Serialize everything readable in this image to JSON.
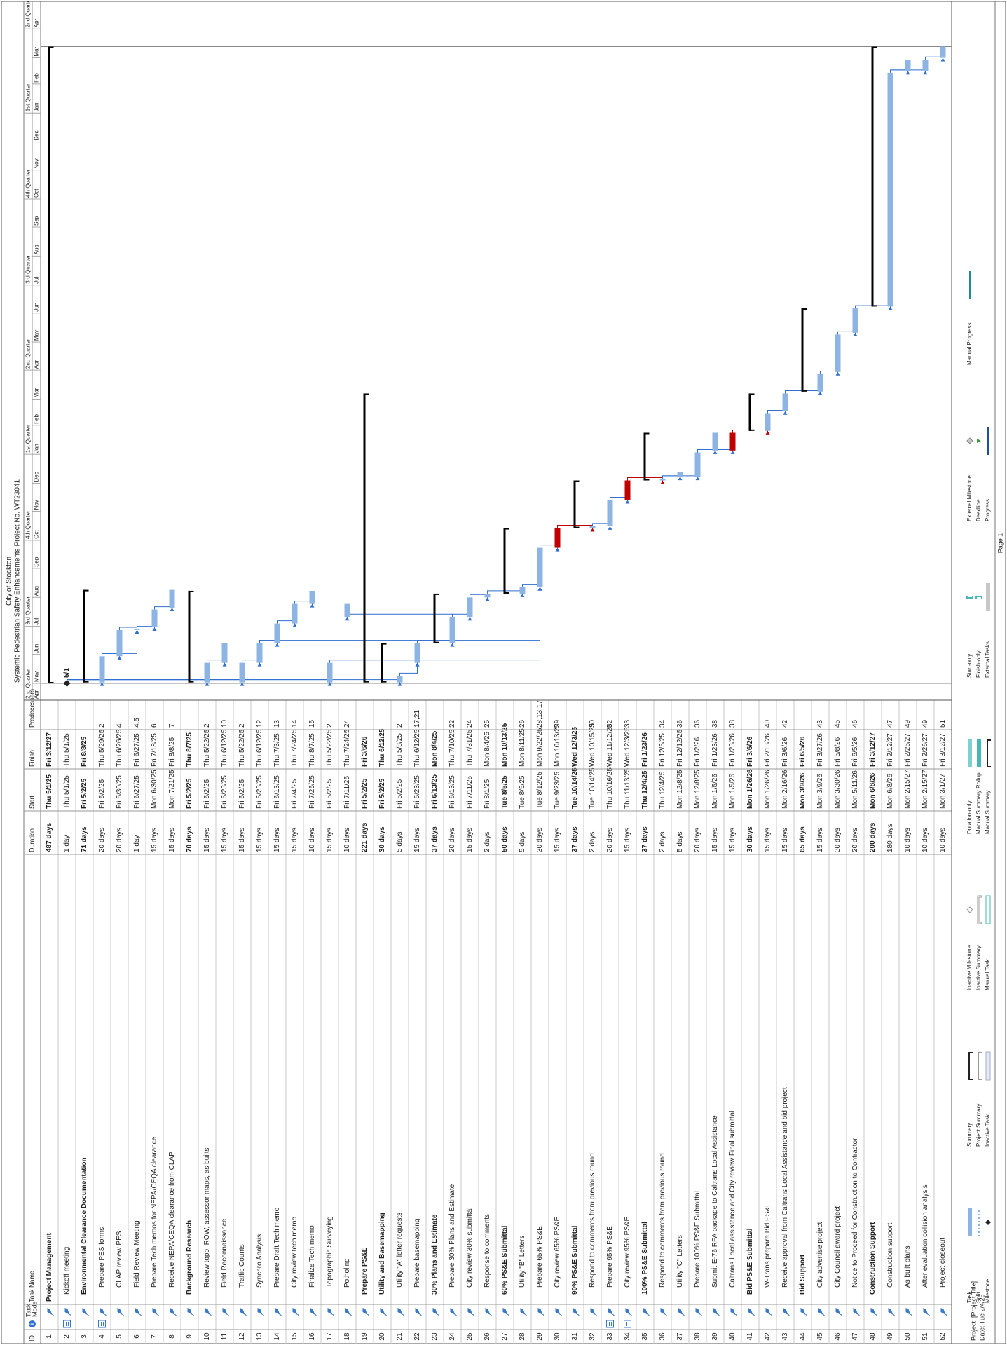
{
  "header": {
    "title": "City of Stockton",
    "subtitle": "Systemic Pedestrian Safety Enhancements Project No. WT23041"
  },
  "table": {
    "columns": [
      "ID",
      "Task Mode",
      "Task Name",
      "Duration",
      "Start",
      "Finish",
      "Predecessors"
    ],
    "rows": [
      {
        "id": 1,
        "name": "Project Management",
        "duration": "487 days",
        "start": "Thu 5/1/25",
        "finish": "Fri 3/12/27",
        "summary": true,
        "level": 0
      },
      {
        "id": 2,
        "name": "Kickoff meeting",
        "duration": "1 day",
        "start": "Thu 5/1/25",
        "finish": "Thu 5/1/25",
        "level": 1,
        "indicator": true,
        "milestone_label": "5/1"
      },
      {
        "id": 3,
        "name": "Environmental Clearance Documentation",
        "duration": "71 days",
        "start": "Fri 5/2/25",
        "finish": "Fri 8/8/25",
        "summary": true,
        "level": 1
      },
      {
        "id": 4,
        "name": "Prepare PES forms",
        "duration": "20 days",
        "start": "Fri 5/2/25",
        "finish": "Thu 5/29/25",
        "predecessors": "2",
        "level": 2,
        "indicator": true
      },
      {
        "id": 5,
        "name": "CLAP review PES",
        "duration": "20 days",
        "start": "Fri 5/30/25",
        "finish": "Thu 6/26/25",
        "predecessors": "4",
        "level": 2
      },
      {
        "id": 6,
        "name": "Field Review Meeting",
        "duration": "1 day",
        "start": "Fri 6/27/25",
        "finish": "Fri 6/27/25",
        "predecessors": "4,5",
        "level": 2
      },
      {
        "id": 7,
        "name": "Prepare Tech memos for NEPA/CEQA clearance",
        "duration": "15 days",
        "start": "Mon 6/30/25",
        "finish": "Fri 7/18/25",
        "predecessors": "6",
        "level": 2
      },
      {
        "id": 8,
        "name": "Receive NEPA/CEQA clearance from CLAP",
        "duration": "15 days",
        "start": "Mon 7/21/25",
        "finish": "Fri 8/8/25",
        "predecessors": "7",
        "level": 2
      },
      {
        "id": 9,
        "name": "Background Research",
        "duration": "70 days",
        "start": "Fri 5/2/25",
        "finish": "Thu 8/7/25",
        "summary": true,
        "level": 1
      },
      {
        "id": 10,
        "name": "Review topo, ROW, assessor maps, as builts",
        "duration": "15 days",
        "start": "Fri 5/2/25",
        "finish": "Thu 5/22/25",
        "predecessors": "2",
        "level": 2
      },
      {
        "id": 11,
        "name": "Field Reconnaissance",
        "duration": "15 days",
        "start": "Fri 5/23/25",
        "finish": "Thu 6/12/25",
        "predecessors": "10",
        "level": 2
      },
      {
        "id": 12,
        "name": "Traffic Counts",
        "duration": "15 days",
        "start": "Fri 5/2/25",
        "finish": "Thu 5/22/25",
        "predecessors": "2",
        "level": 2
      },
      {
        "id": 13,
        "name": "Synchro Analysis",
        "duration": "15 days",
        "start": "Fri 5/23/25",
        "finish": "Thu 6/12/25",
        "predecessors": "12",
        "level": 2
      },
      {
        "id": 14,
        "name": "Prepare Draft Tech memo",
        "duration": "15 days",
        "start": "Fri 6/13/25",
        "finish": "Thu 7/3/25",
        "predecessors": "13",
        "level": 2
      },
      {
        "id": 15,
        "name": "City review tech memo",
        "duration": "15 days",
        "start": "Fri 7/4/25",
        "finish": "Thu 7/24/25",
        "predecessors": "14",
        "level": 2
      },
      {
        "id": 16,
        "name": "Finalize Tech memo",
        "duration": "10 days",
        "start": "Fri 7/25/25",
        "finish": "Thu 8/7/25",
        "predecessors": "15",
        "level": 2
      },
      {
        "id": 17,
        "name": "Topographic Surveying",
        "duration": "15 days",
        "start": "Fri 5/2/25",
        "finish": "Thu 5/22/25",
        "predecessors": "2",
        "level": 2
      },
      {
        "id": 18,
        "name": "Potholing",
        "duration": "10 days",
        "start": "Fri 7/11/25",
        "finish": "Thu 7/24/25",
        "predecessors": "24",
        "level": 2
      },
      {
        "id": 19,
        "name": "Prepare PS&E",
        "duration": "221 days",
        "start": "Fri 5/2/25",
        "finish": "Fri 3/6/26",
        "summary": true,
        "level": 1
      },
      {
        "id": 20,
        "name": "Utility and Basemapping",
        "duration": "30 days",
        "start": "Fri 5/2/25",
        "finish": "Thu 6/12/25",
        "summary": true,
        "level": 1
      },
      {
        "id": 21,
        "name": "Utility \"A\" letter requests",
        "duration": "5 days",
        "start": "Fri 5/2/25",
        "finish": "Thu 5/8/25",
        "predecessors": "2",
        "level": 2
      },
      {
        "id": 22,
        "name": "Prepare basemapping",
        "duration": "15 days",
        "start": "Fri 5/23/25",
        "finish": "Thu 6/12/25",
        "predecessors": "17,21",
        "level": 2
      },
      {
        "id": 23,
        "name": "30% Plans and Estimate",
        "duration": "37 days",
        "start": "Fri 6/13/25",
        "finish": "Mon 8/4/25",
        "summary": true,
        "level": 1
      },
      {
        "id": 24,
        "name": "Prepare 30% Plans and Estimate",
        "duration": "20 days",
        "start": "Fri 6/13/25",
        "finish": "Thu 7/10/25",
        "predecessors": "22",
        "level": 2
      },
      {
        "id": 25,
        "name": "City review 30% submittal",
        "duration": "15 days",
        "start": "Fri 7/11/25",
        "finish": "Thu 7/31/25",
        "predecessors": "24",
        "level": 2
      },
      {
        "id": 26,
        "name": "Response to comments",
        "duration": "2 days",
        "start": "Fri 8/1/25",
        "finish": "Mon 8/4/25",
        "predecessors": "25",
        "level": 2
      },
      {
        "id": 27,
        "name": "60% PS&E Submittal",
        "duration": "50 days",
        "start": "Tue 8/5/25",
        "finish": "Mon 10/13/25",
        "summary": true,
        "level": 1
      },
      {
        "id": 28,
        "name": "Utility \"B\" Letters",
        "duration": "5 days",
        "start": "Tue 8/5/25",
        "finish": "Mon 8/11/25",
        "predecessors": "26",
        "level": 2
      },
      {
        "id": 29,
        "name": "Prepare 65% PS&E",
        "duration": "30 days",
        "start": "Tue 8/12/25",
        "finish": "Mon 9/22/25",
        "predecessors": "28,13,17",
        "level": 2
      },
      {
        "id": 30,
        "name": "City review 65% PS&E",
        "duration": "15 days",
        "start": "Tue 9/23/25",
        "finish": "Mon 10/13/25",
        "predecessors": "29",
        "level": 2,
        "color": "#c00000"
      },
      {
        "id": 31,
        "name": "90% PS&E Submittal",
        "duration": "37 days",
        "start": "Tue 10/14/25",
        "finish": "Wed 12/3/25",
        "summary": true,
        "level": 1
      },
      {
        "id": 32,
        "name": "Respond to comments from previous round",
        "duration": "2 days",
        "start": "Tue 10/14/25",
        "finish": "Wed 10/15/25",
        "predecessors": "30",
        "level": 2
      },
      {
        "id": 33,
        "name": "Prepare 95% PS&E",
        "duration": "20 days",
        "start": "Thu 10/16/25",
        "finish": "Wed 11/12/25",
        "predecessors": "32",
        "level": 2,
        "indicator": true
      },
      {
        "id": 34,
        "name": "City review 95% PS&E",
        "duration": "15 days",
        "start": "Thu 11/13/25",
        "finish": "Wed 12/3/25",
        "predecessors": "33",
        "level": 2,
        "indicator": true,
        "color": "#c00000"
      },
      {
        "id": 35,
        "name": "100% PS&E Submittal",
        "duration": "37 days",
        "start": "Thu 12/4/25",
        "finish": "Fri 1/23/26",
        "summary": true,
        "level": 1
      },
      {
        "id": 36,
        "name": "Respond to comments from previous round",
        "duration": "2 days",
        "start": "Thu 12/4/25",
        "finish": "Fri 12/5/25",
        "predecessors": "34",
        "level": 2
      },
      {
        "id": 37,
        "name": "Utility \"C\" Letters",
        "duration": "5 days",
        "start": "Mon 12/8/25",
        "finish": "Fri 12/12/25",
        "predecessors": "36",
        "level": 2
      },
      {
        "id": 38,
        "name": "Prepare 100% PS&E Submittal",
        "duration": "20 days",
        "start": "Mon 12/8/25",
        "finish": "Fri 1/2/26",
        "predecessors": "36",
        "level": 2
      },
      {
        "id": 39,
        "name": "Submit E-76 RFA package to Caltrans Local Assistance",
        "duration": "15 days",
        "start": "Mon 1/5/26",
        "finish": "Fri 1/23/26",
        "predecessors": "38",
        "level": 2
      },
      {
        "id": 40,
        "name": "Caltrans Local assistance and City review Final submittal",
        "duration": "15 days",
        "start": "Mon 1/5/26",
        "finish": "Fri 1/23/26",
        "predecessors": "38",
        "level": 2,
        "color": "#c00000"
      },
      {
        "id": 41,
        "name": "Bid PS&E Submittal",
        "duration": "30 days",
        "start": "Mon 1/26/26",
        "finish": "Fri 3/6/26",
        "summary": true,
        "level": 1
      },
      {
        "id": 42,
        "name": "W-Trans prepare Bid PS&E",
        "duration": "15 days",
        "start": "Mon 1/26/26",
        "finish": "Fri 2/13/26",
        "predecessors": "40",
        "level": 2
      },
      {
        "id": 43,
        "name": "Receive approval from Caltrans Local Assistance and bid project",
        "duration": "15 days",
        "start": "Mon 2/16/26",
        "finish": "Fri 3/6/26",
        "predecessors": "42",
        "level": 2
      },
      {
        "id": 44,
        "name": "Bid Support",
        "duration": "65 days",
        "start": "Mon 3/9/26",
        "finish": "Fri 6/5/26",
        "summary": true,
        "level": 1
      },
      {
        "id": 45,
        "name": "City advertise project",
        "duration": "15 days",
        "start": "Mon 3/9/26",
        "finish": "Fri 3/27/26",
        "predecessors": "43",
        "level": 2
      },
      {
        "id": 46,
        "name": "City Council award project",
        "duration": "30 days",
        "start": "Mon 3/30/26",
        "finish": "Fri 5/8/26",
        "predecessors": "45",
        "level": 2
      },
      {
        "id": 47,
        "name": "Notice to Proceed for Construction to Contractor",
        "duration": "20 days",
        "start": "Mon 5/11/26",
        "finish": "Fri 6/5/26",
        "predecessors": "46",
        "level": 2
      },
      {
        "id": 48,
        "name": "Construction Support",
        "duration": "200 days",
        "start": "Mon 6/8/26",
        "finish": "Fri 3/12/27",
        "summary": true,
        "level": 1
      },
      {
        "id": 49,
        "name": "Construction support",
        "duration": "180 days",
        "start": "Mon 6/8/26",
        "finish": "Fri 2/12/27",
        "predecessors": "47",
        "level": 2
      },
      {
        "id": 50,
        "name": "As built plans",
        "duration": "10 days",
        "start": "Mon 2/15/27",
        "finish": "Fri 2/26/27",
        "predecessors": "49",
        "level": 2
      },
      {
        "id": 51,
        "name": "After evaluation collision analysis",
        "duration": "10 days",
        "start": "Mon 2/15/27",
        "finish": "Fri 2/26/27",
        "predecessors": "49",
        "level": 2
      },
      {
        "id": 52,
        "name": "Project closeout",
        "duration": "10 days",
        "start": "Mon 3/1/27",
        "finish": "Fri 3/12/27",
        "predecessors": "51",
        "level": 2
      }
    ]
  },
  "gantt": {
    "task_color": "#8db4e2",
    "summary_color": "#000000",
    "link_color": "#2f6fd0",
    "quarters": [
      "2nd Quarter",
      "3rd Quarter",
      "4th Quarter",
      "1st Quarter",
      "2nd Quarter",
      "3rd Quarter",
      "4th Quarter",
      "1st Quarter",
      "2nd Quarter"
    ],
    "months": [
      "Apr",
      "May",
      "Jun",
      "Jul",
      "Aug",
      "Sep",
      "Oct",
      "Nov",
      "Dec",
      "Jan",
      "Feb",
      "Mar",
      "Apr",
      "May",
      "Jun",
      "Jul",
      "Aug",
      "Sep",
      "Oct",
      "Nov",
      "Dec",
      "Jan",
      "Feb",
      "Mar",
      "Apr"
    ]
  },
  "legend": [
    "Task",
    "Split",
    "Milestone",
    "Summary",
    "Project Summary",
    "Inactive Task",
    "Inactive Milestone",
    "Inactive Summary",
    "Manual Task",
    "Duration-only",
    "Manual Summary Rollup",
    "Manual Summary",
    "Start-only",
    "Finish-only",
    "External Tasks",
    "External Milestone",
    "Deadline",
    "Progress",
    "Manual Progress"
  ],
  "footer": {
    "project": "Project: [Project Title]",
    "date": "Date: Tue 2/4/25",
    "page": "Page 1"
  }
}
